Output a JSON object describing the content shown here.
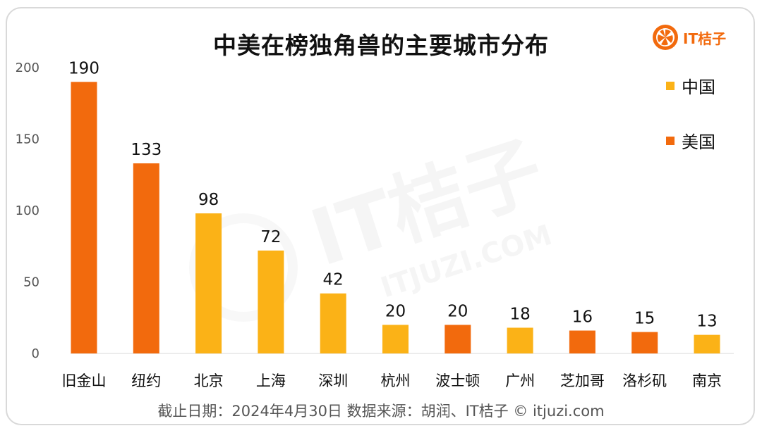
{
  "title": "中美在榜独角兽的主要城市分布",
  "footer": "截止日期：2024年4月30日    数据来源：胡润、IT桔子 © itjuzi.com",
  "logo": {
    "text": "IT桔子",
    "icon": "orange-slice-icon",
    "color": "#f26a0d"
  },
  "watermark": {
    "text": "IT桔子",
    "subtext": "ITJUZI.COM"
  },
  "colors": {
    "china": "#fbb217",
    "usa": "#f26a0d"
  },
  "chart_data": {
    "type": "bar",
    "title": "中美在榜独角兽的主要城市分布",
    "xlabel": "",
    "ylabel": "",
    "ylim": [
      0,
      200
    ],
    "yticks": [
      0,
      50,
      100,
      150,
      200
    ],
    "grid": false,
    "legend_position": "top-right",
    "legend": [
      {
        "name": "中国",
        "color": "#fbb217"
      },
      {
        "name": "美国",
        "color": "#f26a0d"
      }
    ],
    "categories": [
      "旧金山",
      "纽约",
      "北京",
      "上海",
      "深圳",
      "杭州",
      "波士顿",
      "广州",
      "芝加哥",
      "洛杉矶",
      "南京"
    ],
    "values": [
      190,
      133,
      98,
      72,
      42,
      20,
      20,
      18,
      16,
      15,
      13
    ],
    "country": [
      "美国",
      "美国",
      "中国",
      "中国",
      "中国",
      "中国",
      "美国",
      "中国",
      "美国",
      "美国",
      "中国"
    ]
  }
}
